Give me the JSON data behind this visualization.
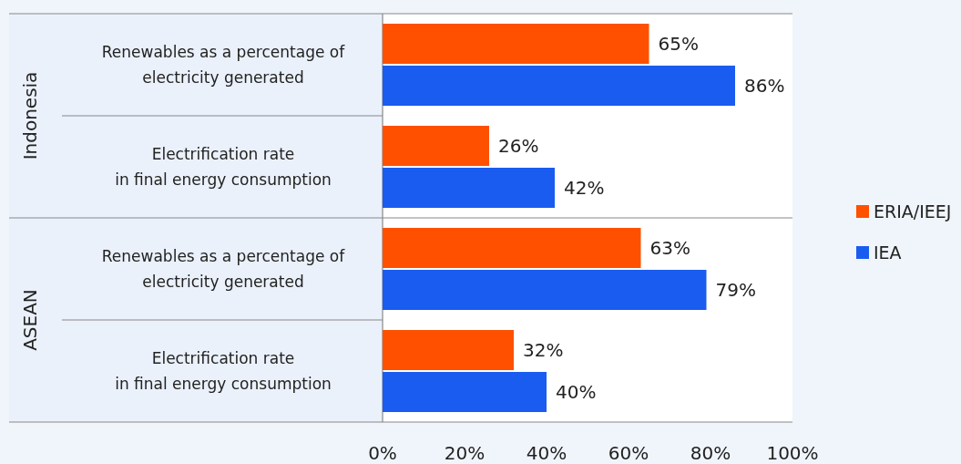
{
  "chart_data": {
    "type": "bar",
    "orientation": "horizontal",
    "categories": [
      "Renewables as a percentage of\nelectricity generated",
      "Electrification rate\nin final energy consumption",
      "Renewables as a percentage of\nelectricity generated",
      "Electrification rate\nin final energy consumption"
    ],
    "series": [
      {
        "name": "ERIA/IEEJ",
        "color": "#ff5000",
        "values": [
          65,
          26,
          63,
          32
        ],
        "value_labels": [
          "65%",
          "26%",
          "63%",
          "32%"
        ]
      },
      {
        "name": "IEA",
        "color": "#1a5cf0",
        "values": [
          86,
          42,
          79,
          40
        ],
        "value_labels": [
          "86%",
          "42%",
          "79%",
          "40%"
        ]
      }
    ],
    "annotations": [
      "Indonesia",
      "ASEAN"
    ],
    "xlim": [
      0,
      100
    ],
    "xticks": [
      {
        "value": 0,
        "label": "0%"
      },
      {
        "value": 20,
        "label": "20%"
      },
      {
        "value": 40,
        "label": "40%"
      },
      {
        "value": 60,
        "label": "60%"
      },
      {
        "value": 80,
        "label": "80%"
      },
      {
        "value": 100,
        "label": "100%"
      }
    ],
    "grid": false,
    "legend": "right"
  }
}
